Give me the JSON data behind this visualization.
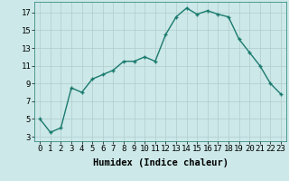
{
  "x": [
    0,
    1,
    2,
    3,
    4,
    5,
    6,
    7,
    8,
    9,
    10,
    11,
    12,
    13,
    14,
    15,
    16,
    17,
    18,
    19,
    20,
    21,
    22,
    23
  ],
  "y": [
    5.0,
    3.5,
    4.0,
    8.5,
    8.0,
    9.5,
    10.0,
    10.5,
    11.5,
    11.5,
    12.0,
    11.5,
    14.5,
    16.5,
    17.5,
    16.8,
    17.2,
    16.8,
    16.5,
    14.0,
    12.5,
    11.0,
    9.0,
    7.8
  ],
  "line_color": "#1a7a6e",
  "marker": "+",
  "marker_size": 3,
  "marker_linewidth": 1.0,
  "background_color": "#cce8e8",
  "grid_color": "#b0cccc",
  "xlabel": "Humidex (Indice chaleur)",
  "ylabel_ticks": [
    3,
    5,
    7,
    9,
    11,
    13,
    15,
    17
  ],
  "xtick_labels": [
    "0",
    "1",
    "2",
    "3",
    "4",
    "5",
    "6",
    "7",
    "8",
    "9",
    "10",
    "11",
    "12",
    "13",
    "14",
    "15",
    "16",
    "17",
    "18",
    "19",
    "20",
    "21",
    "22",
    "23"
  ],
  "xlim": [
    -0.5,
    23.5
  ],
  "ylim": [
    2.5,
    18.2
  ],
  "xlabel_fontsize": 7.5,
  "tick_fontsize": 6.5,
  "linewidth": 1.0
}
